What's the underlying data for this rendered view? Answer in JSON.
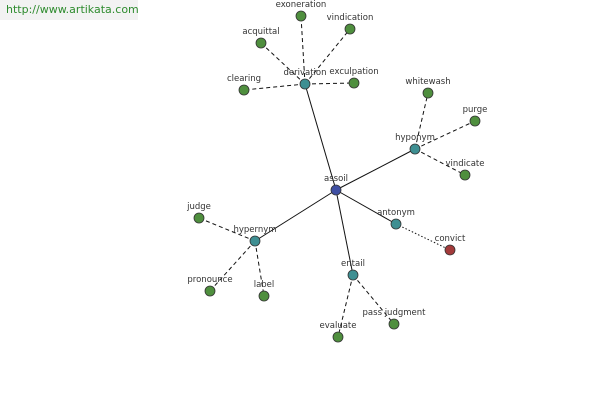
{
  "watermark": "http://www.artikata.com",
  "nodes": [
    {
      "label": "assoil"
    },
    {
      "label": "derivation"
    },
    {
      "label": "hyponym"
    },
    {
      "label": "hypernym"
    },
    {
      "label": "antonym"
    },
    {
      "label": "entail"
    },
    {
      "label": "exoneration"
    },
    {
      "label": "vindication"
    },
    {
      "label": "acquittal"
    },
    {
      "label": "clearing"
    },
    {
      "label": "exculpation"
    },
    {
      "label": "whitewash"
    },
    {
      "label": "purge"
    },
    {
      "label": "vindicate"
    },
    {
      "label": "judge"
    },
    {
      "label": "pronounce"
    },
    {
      "label": "label"
    },
    {
      "label": "convict"
    },
    {
      "label": "evaluate"
    },
    {
      "label": "pass judgment"
    }
  ]
}
